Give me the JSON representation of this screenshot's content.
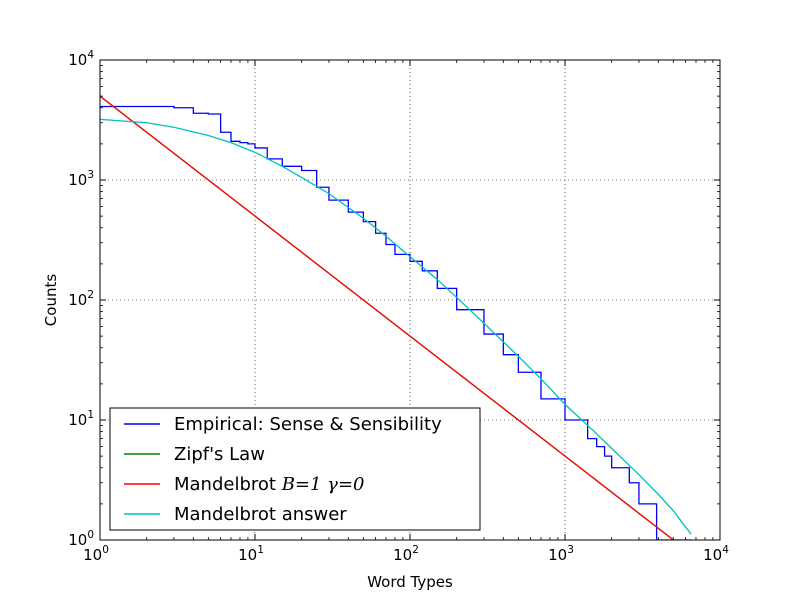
{
  "chart_data": {
    "type": "line",
    "title": "",
    "xlabel": "Word Types",
    "ylabel": "Counts",
    "xscale": "log",
    "yscale": "log",
    "xlim": [
      1,
      10000
    ],
    "ylim": [
      1,
      10000
    ],
    "grid": true,
    "x_ticks": [
      {
        "base": "10",
        "exp": "0",
        "value": 1
      },
      {
        "base": "10",
        "exp": "1",
        "value": 10
      },
      {
        "base": "10",
        "exp": "2",
        "value": 100
      },
      {
        "base": "10",
        "exp": "3",
        "value": 1000
      },
      {
        "base": "10",
        "exp": "4",
        "value": 10000
      }
    ],
    "y_ticks": [
      {
        "base": "10",
        "exp": "0",
        "value": 1
      },
      {
        "base": "10",
        "exp": "1",
        "value": 10
      },
      {
        "base": "10",
        "exp": "2",
        "value": 100
      },
      {
        "base": "10",
        "exp": "3",
        "value": 1000
      },
      {
        "base": "10",
        "exp": "4",
        "value": 10000
      }
    ],
    "legend": {
      "location": "lower-left",
      "entries": [
        {
          "label": "Empirical: Sense & Sensibility",
          "math": "",
          "color": "#0000ff"
        },
        {
          "label": "Zipf's Law",
          "math": "",
          "color": "#008000"
        },
        {
          "label": "Mandelbrot ",
          "math": "B=1 γ=0",
          "color": "#ff0000"
        },
        {
          "label": "Mandelbrot answer",
          "math": "",
          "color": "#00bfbf"
        }
      ]
    },
    "series": [
      {
        "name": "Empirical: Sense & Sensibility",
        "color": "#0000ff",
        "drawstyle": "steps",
        "x": [
          1,
          2,
          3,
          4,
          5,
          6,
          7,
          8,
          9,
          10,
          12,
          15,
          20,
          25,
          30,
          40,
          50,
          60,
          70,
          80,
          100,
          120,
          150,
          200,
          300,
          400,
          500,
          700,
          1000,
          1400,
          1600,
          1800,
          2000,
          2200,
          2600,
          3000,
          3900,
          6500
        ],
        "y": [
          4100,
          4100,
          4000,
          3600,
          3550,
          2500,
          2100,
          2050,
          2000,
          1850,
          1500,
          1300,
          1200,
          870,
          680,
          540,
          450,
          360,
          290,
          240,
          210,
          175,
          125,
          83,
          52,
          35,
          25,
          15,
          10,
          7,
          6,
          5,
          4,
          4,
          3,
          2,
          1,
          1
        ]
      },
      {
        "name": "Zipf's Law",
        "color": "#008000",
        "drawstyle": "line",
        "x": [
          1,
          6500
        ],
        "y": [
          5000,
          0.77
        ]
      },
      {
        "name": "Mandelbrot B=1 γ=0",
        "color": "#ff0000",
        "drawstyle": "line",
        "x": [
          1,
          6500
        ],
        "y": [
          5000,
          0.77
        ]
      },
      {
        "name": "Mandelbrot answer",
        "color": "#00bfbf",
        "drawstyle": "line",
        "x": [
          1,
          2,
          3,
          5,
          7,
          10,
          15,
          20,
          30,
          50,
          70,
          100,
          150,
          200,
          300,
          500,
          700,
          1000,
          1500,
          2000,
          3000,
          4000,
          5000,
          6500
        ],
        "y": [
          3200,
          3000,
          2750,
          2350,
          2050,
          1700,
          1300,
          1050,
          770,
          480,
          340,
          230,
          148,
          105,
          64,
          34,
          22,
          13.5,
          8.3,
          5.8,
          3.5,
          2.4,
          1.75,
          1.12
        ]
      }
    ]
  }
}
